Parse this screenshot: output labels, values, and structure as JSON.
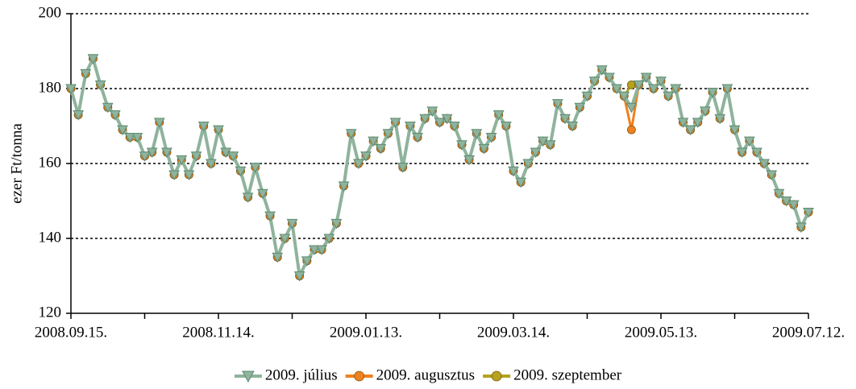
{
  "chart_data": {
    "type": "line",
    "y_label": "ezer Ft/tonna",
    "categories": [
      "2008.09.15.",
      null,
      null,
      null,
      null,
      null,
      null,
      null,
      null,
      null,
      null,
      null,
      null,
      null,
      null,
      null,
      null,
      null,
      null,
      null,
      "2008.11.14.",
      null,
      null,
      null,
      null,
      null,
      null,
      null,
      null,
      null,
      null,
      null,
      null,
      null,
      null,
      null,
      null,
      null,
      null,
      null,
      "2009.01.13.",
      null,
      null,
      null,
      null,
      null,
      null,
      null,
      null,
      null,
      null,
      null,
      null,
      null,
      null,
      null,
      null,
      null,
      null,
      null,
      "2009.03.14.",
      null,
      null,
      null,
      null,
      null,
      null,
      null,
      null,
      null,
      null,
      null,
      null,
      null,
      null,
      null,
      null,
      null,
      null,
      null,
      "2009.05.13.",
      null,
      null,
      null,
      null,
      null,
      null,
      null,
      null,
      null,
      null,
      null,
      null,
      null,
      null,
      null,
      null,
      null,
      null,
      null,
      "2009.07.12."
    ],
    "series": [
      {
        "name": "2009. szeptember",
        "color": "#b5a21e",
        "marker": "circle",
        "values": [
          180,
          173,
          184,
          188,
          181,
          175,
          173,
          169,
          167,
          167,
          162,
          163,
          171,
          163,
          157,
          161,
          157,
          162,
          170,
          160,
          169,
          163,
          162,
          158,
          151,
          159,
          152,
          146,
          135,
          140,
          144,
          130,
          134,
          137,
          137,
          140,
          144,
          154,
          168,
          160,
          162,
          166,
          164,
          168,
          171,
          159,
          170,
          167,
          172,
          174,
          171,
          172,
          170,
          165,
          161,
          168,
          164,
          167,
          173,
          170,
          158,
          155,
          160,
          163,
          166,
          165,
          176,
          172,
          170,
          175,
          178,
          182,
          185,
          183,
          180,
          178,
          181,
          181,
          183,
          180,
          182,
          178,
          180,
          171,
          169,
          171,
          174,
          179,
          172,
          180,
          169,
          163,
          166,
          163,
          160,
          157,
          152,
          150,
          149,
          143,
          147
        ]
      },
      {
        "name": "2009. augusztus",
        "color": "#f0801e",
        "marker": "circle",
        "values": [
          180,
          173,
          184,
          188,
          181,
          175,
          173,
          169,
          167,
          167,
          162,
          163,
          171,
          163,
          157,
          161,
          157,
          162,
          170,
          160,
          169,
          163,
          162,
          158,
          151,
          159,
          152,
          146,
          135,
          140,
          144,
          130,
          134,
          137,
          137,
          140,
          144,
          154,
          168,
          160,
          162,
          166,
          164,
          168,
          171,
          159,
          170,
          167,
          172,
          174,
          171,
          172,
          170,
          165,
          161,
          168,
          164,
          167,
          173,
          170,
          158,
          155,
          160,
          163,
          166,
          165,
          176,
          172,
          170,
          175,
          178,
          182,
          185,
          183,
          180,
          178,
          169,
          181,
          183,
          180,
          182,
          178,
          180,
          171,
          169,
          171,
          174,
          179,
          172,
          180,
          169,
          163,
          166,
          163,
          160,
          157,
          152,
          150,
          149,
          143,
          147
        ]
      },
      {
        "name": "2009. július",
        "color": "#8fb39c",
        "marker": "triangle",
        "values": [
          180,
          173,
          184,
          188,
          181,
          175,
          173,
          169,
          167,
          167,
          162,
          163,
          171,
          163,
          157,
          161,
          157,
          162,
          170,
          160,
          169,
          163,
          162,
          158,
          151,
          159,
          152,
          146,
          135,
          140,
          144,
          130,
          134,
          137,
          137,
          140,
          144,
          154,
          168,
          160,
          162,
          166,
          164,
          168,
          171,
          159,
          170,
          167,
          172,
          174,
          171,
          172,
          170,
          165,
          161,
          168,
          164,
          167,
          173,
          170,
          158,
          155,
          160,
          163,
          166,
          165,
          176,
          172,
          170,
          175,
          178,
          182,
          185,
          183,
          180,
          178,
          175,
          181,
          183,
          180,
          182,
          178,
          180,
          171,
          169,
          171,
          174,
          179,
          172,
          180,
          169,
          163,
          166,
          163,
          160,
          157,
          152,
          150,
          149,
          143,
          147
        ]
      }
    ],
    "legend_order": [
      2,
      1,
      0
    ],
    "ylim": [
      120,
      200
    ],
    "yticks": [
      120,
      140,
      160,
      180,
      200
    ],
    "grid": true
  }
}
